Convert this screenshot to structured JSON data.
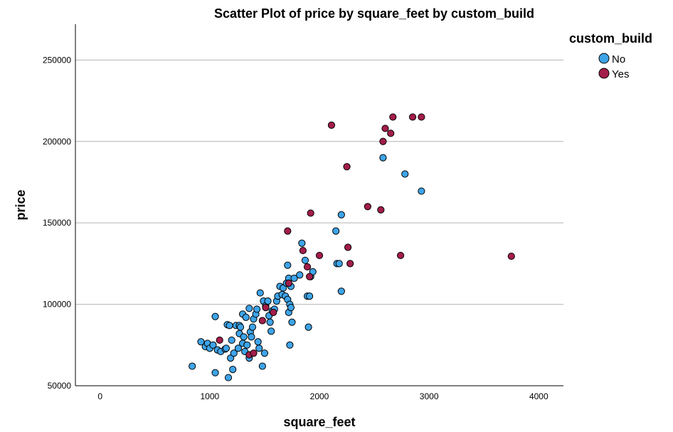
{
  "chart_data": {
    "type": "scatter",
    "title": "Scatter Plot of price by square_feet by custom_build",
    "xlabel": "square_feet",
    "ylabel": "price",
    "xlim": [
      -225,
      4225
    ],
    "ylim": [
      50000,
      272000
    ],
    "xticks": [
      0,
      1000,
      2000,
      3000,
      4000
    ],
    "yticks": [
      50000,
      100000,
      150000,
      200000,
      250000
    ],
    "grid": "horizontal",
    "legend": {
      "title": "custom_build",
      "position": "top-right"
    },
    "series": [
      {
        "name": "No",
        "color": "#3ea4e8",
        "points": [
          [
            840,
            62000
          ],
          [
            920,
            77000
          ],
          [
            960,
            74000
          ],
          [
            980,
            76000
          ],
          [
            1000,
            73000
          ],
          [
            1030,
            75000
          ],
          [
            1050,
            92500
          ],
          [
            1050,
            58000
          ],
          [
            1070,
            72000
          ],
          [
            1100,
            71000
          ],
          [
            1140,
            72500
          ],
          [
            1150,
            73000
          ],
          [
            1160,
            87500
          ],
          [
            1170,
            55000
          ],
          [
            1180,
            87000
          ],
          [
            1190,
            67000
          ],
          [
            1200,
            78000
          ],
          [
            1210,
            60000
          ],
          [
            1220,
            70000
          ],
          [
            1240,
            87000
          ],
          [
            1260,
            73000
          ],
          [
            1270,
            87000
          ],
          [
            1270,
            82000
          ],
          [
            1280,
            86000
          ],
          [
            1300,
            94000
          ],
          [
            1300,
            76000
          ],
          [
            1310,
            80000
          ],
          [
            1320,
            71000
          ],
          [
            1330,
            92000
          ],
          [
            1340,
            75000
          ],
          [
            1360,
            67000
          ],
          [
            1360,
            97500
          ],
          [
            1370,
            83000
          ],
          [
            1380,
            80000
          ],
          [
            1390,
            86000
          ],
          [
            1400,
            91000
          ],
          [
            1420,
            94000
          ],
          [
            1430,
            97000
          ],
          [
            1440,
            77000
          ],
          [
            1450,
            73000
          ],
          [
            1460,
            107000
          ],
          [
            1480,
            62000
          ],
          [
            1490,
            102000
          ],
          [
            1500,
            70000
          ],
          [
            1510,
            99000
          ],
          [
            1530,
            102000
          ],
          [
            1540,
            93000
          ],
          [
            1550,
            89000
          ],
          [
            1560,
            83500
          ],
          [
            1570,
            96000
          ],
          [
            1590,
            97000
          ],
          [
            1610,
            102000
          ],
          [
            1620,
            105000
          ],
          [
            1640,
            111000
          ],
          [
            1660,
            106000
          ],
          [
            1670,
            110000
          ],
          [
            1690,
            105000
          ],
          [
            1700,
            113000
          ],
          [
            1710,
            124000
          ],
          [
            1710,
            103000
          ],
          [
            1720,
            116000
          ],
          [
            1720,
            95000
          ],
          [
            1730,
            100000
          ],
          [
            1730,
            75000
          ],
          [
            1740,
            98000
          ],
          [
            1740,
            111000
          ],
          [
            1750,
            89000
          ],
          [
            1770,
            116000
          ],
          [
            1820,
            118000
          ],
          [
            1840,
            137500
          ],
          [
            1870,
            127000
          ],
          [
            1890,
            105000
          ],
          [
            1900,
            86000
          ],
          [
            1910,
            105000
          ],
          [
            1920,
            117000
          ],
          [
            1940,
            120000
          ],
          [
            2150,
            145000
          ],
          [
            2160,
            125000
          ],
          [
            2180,
            125000
          ],
          [
            2200,
            155000
          ],
          [
            2200,
            108000
          ],
          [
            2580,
            190000
          ],
          [
            2780,
            180000
          ],
          [
            2930,
            169500
          ]
        ]
      },
      {
        "name": "Yes",
        "color": "#a31d4a",
        "points": [
          [
            1090,
            78000
          ],
          [
            1360,
            69000
          ],
          [
            1400,
            70000
          ],
          [
            1480,
            90000
          ],
          [
            1510,
            98000
          ],
          [
            1580,
            95000
          ],
          [
            1710,
            145000
          ],
          [
            1720,
            113000
          ],
          [
            1850,
            133000
          ],
          [
            1890,
            123000
          ],
          [
            1910,
            117000
          ],
          [
            1920,
            156000
          ],
          [
            2000,
            130000
          ],
          [
            2110,
            210000
          ],
          [
            2250,
            184500
          ],
          [
            2260,
            135000
          ],
          [
            2280,
            125000
          ],
          [
            2440,
            160000
          ],
          [
            2560,
            158000
          ],
          [
            2580,
            200000
          ],
          [
            2600,
            208000
          ],
          [
            2650,
            205000
          ],
          [
            2670,
            215000
          ],
          [
            2740,
            130000
          ],
          [
            2850,
            215000
          ],
          [
            2930,
            215000
          ],
          [
            3750,
            129500
          ]
        ]
      }
    ]
  }
}
